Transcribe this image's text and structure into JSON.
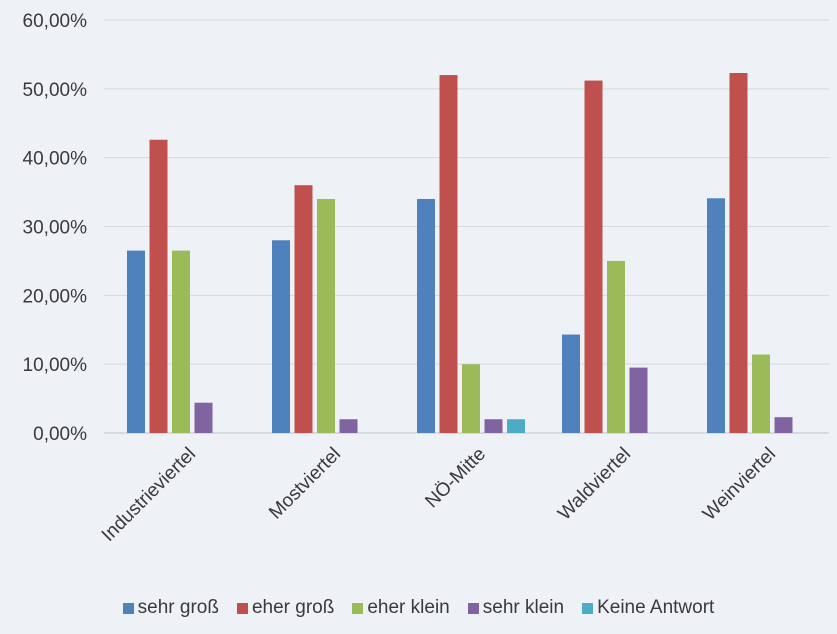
{
  "chart_data": {
    "type": "bar",
    "categories": [
      "Industrieviertel",
      "Mostviertel",
      "NÖ-Mitte",
      "Waldviertel",
      "Weinviertel"
    ],
    "series": [
      {
        "name": "sehr groß",
        "color": "#4f81bd",
        "values": [
          26.5,
          28.0,
          34.0,
          14.3,
          34.1
        ]
      },
      {
        "name": "eher groß",
        "color": "#c0504d",
        "values": [
          42.6,
          36.0,
          52.0,
          51.2,
          52.3
        ]
      },
      {
        "name": "eher klein",
        "color": "#9bbb59",
        "values": [
          26.5,
          34.0,
          10.0,
          25.0,
          11.4
        ]
      },
      {
        "name": "sehr klein",
        "color": "#8064a2",
        "values": [
          4.4,
          2.0,
          2.0,
          9.5,
          2.3
        ]
      },
      {
        "name": "Keine Antwort",
        "color": "#4bacc6",
        "values": [
          0,
          0,
          2.0,
          0,
          0
        ]
      }
    ],
    "yticks": [
      "0,00%",
      "10,00%",
      "20,00%",
      "30,00%",
      "40,00%",
      "50,00%",
      "60,00%"
    ],
    "ylim": [
      0,
      60
    ],
    "grid": true,
    "legend_position": "bottom"
  }
}
